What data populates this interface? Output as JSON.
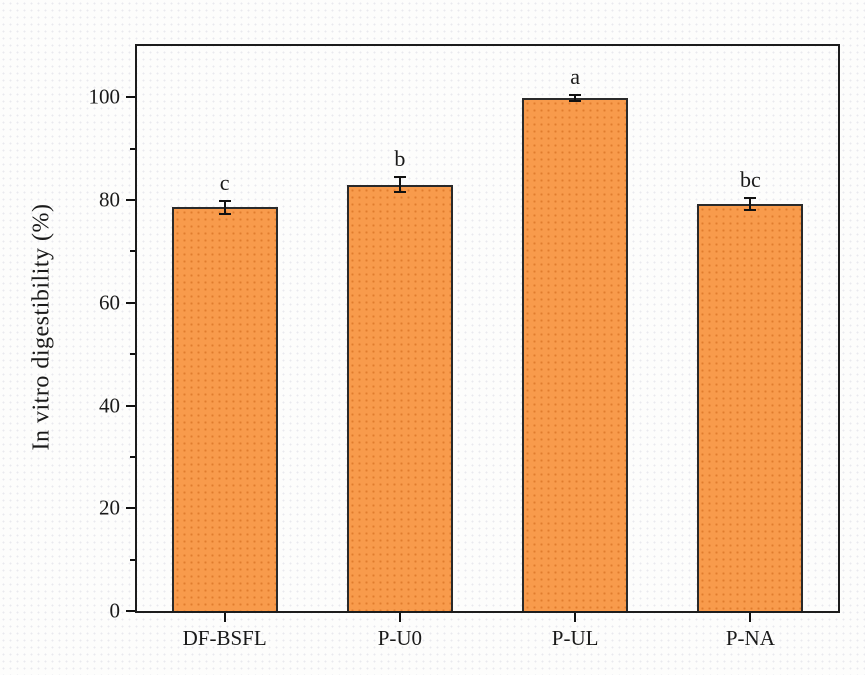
{
  "chart_data": {
    "type": "bar",
    "title": "",
    "ylabel": "In vitro digestibility (%)",
    "xlabel": "",
    "categories": [
      "DF-BSFL",
      "P-U0",
      "P-UL",
      "P-NA"
    ],
    "values": [
      78.6,
      83.0,
      99.8,
      79.3
    ],
    "errors": [
      1.3,
      1.5,
      0.6,
      1.2
    ],
    "sig_letters": [
      "c",
      "b",
      "a",
      "bc"
    ],
    "ylim": [
      0,
      110
    ],
    "ytick_major": [
      0,
      20,
      40,
      60,
      80,
      100
    ],
    "ytick_minor": [
      10,
      30,
      50,
      70,
      90
    ],
    "grid": false,
    "legend_position": "none",
    "bar_color": "#F89B4C",
    "bar_pattern_dot_color": "#E07C2E",
    "bar_border_color": "#2a2a2a",
    "axis_color": "#1c1c1c",
    "error_bar_color": "#111111",
    "background_color": "#fdfdfc"
  }
}
